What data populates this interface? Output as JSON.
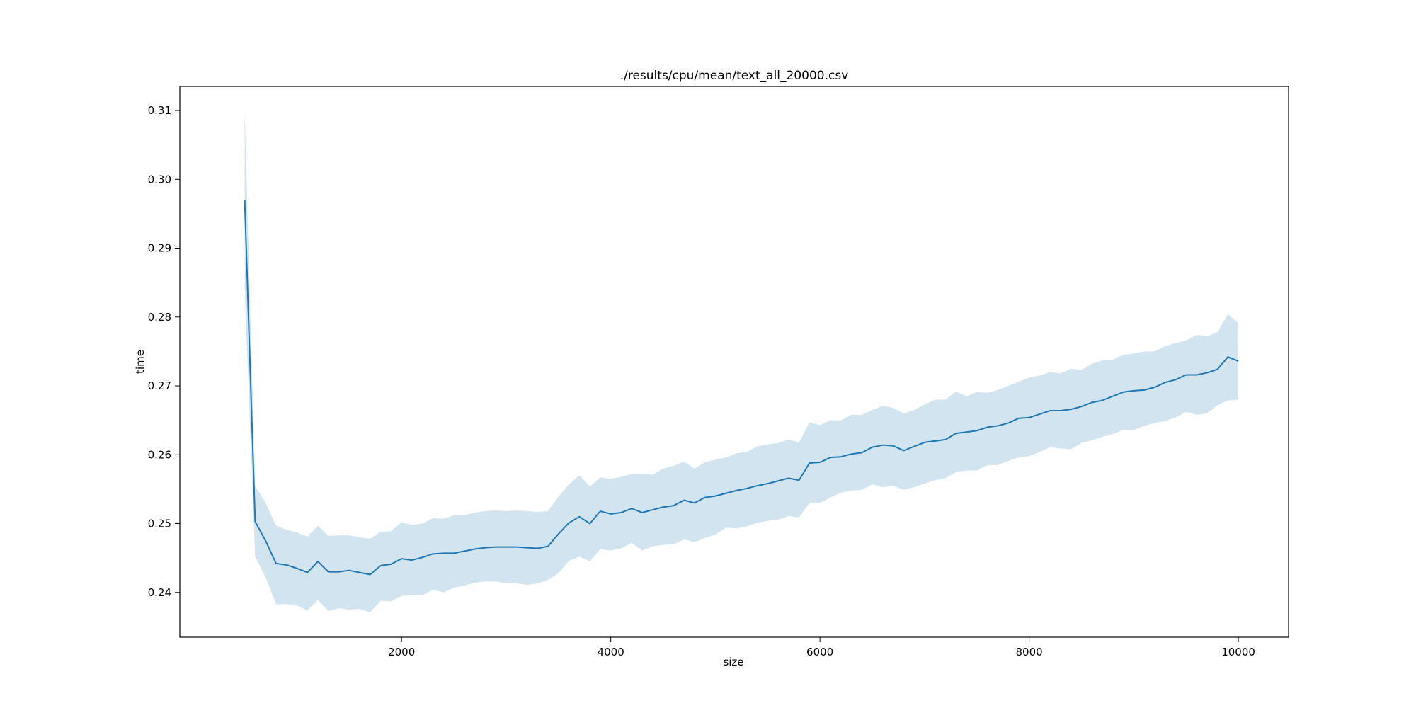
{
  "chart_data": {
    "type": "line",
    "title": "./results/cpu/mean/text_all_20000.csv",
    "xlabel": "size",
    "ylabel": "time",
    "xlim": [
      -120,
      10480
    ],
    "ylim": [
      0.2335,
      0.3135
    ],
    "xticks": [
      2000,
      4000,
      6000,
      8000,
      10000
    ],
    "xtick_labels": [
      "2000",
      "4000",
      "6000",
      "8000",
      "10000"
    ],
    "yticks": [
      0.24,
      0.25,
      0.26,
      0.27,
      0.28,
      0.29,
      0.3,
      0.31
    ],
    "ytick_labels": [
      "0.24",
      "0.25",
      "0.26",
      "0.27",
      "0.28",
      "0.29",
      "0.30",
      "0.31"
    ],
    "grid": false,
    "line_color": "#1f77b4",
    "band_color": "#1f77b4",
    "x": [
      500,
      600,
      700,
      800,
      900,
      1000,
      1100,
      1200,
      1300,
      1400,
      1500,
      1600,
      1700,
      1800,
      1900,
      2000,
      2100,
      2200,
      2300,
      2400,
      2500,
      2600,
      2700,
      2800,
      2900,
      3000,
      3100,
      3200,
      3300,
      3400,
      3500,
      3600,
      3700,
      3800,
      3900,
      4000,
      4100,
      4200,
      4300,
      4400,
      4500,
      4600,
      4700,
      4800,
      4900,
      5000,
      5100,
      5200,
      5300,
      5400,
      5500,
      5600,
      5700,
      5800,
      5900,
      6000,
      6100,
      6200,
      6300,
      6400,
      6500,
      6600,
      6700,
      6800,
      6900,
      7000,
      7100,
      7200,
      7300,
      7400,
      7500,
      7600,
      7700,
      7800,
      7900,
      8000,
      8100,
      8200,
      8300,
      8400,
      8500,
      8600,
      8700,
      8800,
      8900,
      9000,
      9100,
      9200,
      9300,
      9400,
      9500,
      9600,
      9700,
      9800,
      9900,
      10000
    ],
    "series": [
      {
        "values": [
          0.297,
          0.2503,
          0.2475,
          0.2442,
          0.244,
          0.2435,
          0.2429,
          0.2445,
          0.243,
          0.243,
          0.2432,
          0.2429,
          0.2426,
          0.2439,
          0.2441,
          0.2449,
          0.2447,
          0.2451,
          0.2456,
          0.2457,
          0.2457,
          0.246,
          0.2463,
          0.2465,
          0.2466,
          0.2466,
          0.2466,
          0.2465,
          0.2464,
          0.2467,
          0.2485,
          0.2501,
          0.251,
          0.25,
          0.2518,
          0.2514,
          0.2516,
          0.2522,
          0.2516,
          0.252,
          0.2524,
          0.2526,
          0.2534,
          0.253,
          0.2538,
          0.254,
          0.2544,
          0.2548,
          0.2551,
          0.2555,
          0.2558,
          0.2562,
          0.2566,
          0.2563,
          0.2588,
          0.2589,
          0.2596,
          0.2597,
          0.2601,
          0.2603,
          0.2611,
          0.2614,
          0.2613,
          0.2606,
          0.2612,
          0.2618,
          0.262,
          0.2622,
          0.2631,
          0.2633,
          0.2635,
          0.264,
          0.2642,
          0.2646,
          0.2653,
          0.2654,
          0.2659,
          0.2664,
          0.2664,
          0.2666,
          0.267,
          0.2676,
          0.2679,
          0.2685,
          0.2691,
          0.2693,
          0.2694,
          0.2698,
          0.2705,
          0.2709,
          0.2716,
          0.2716,
          0.2719,
          0.2724,
          0.2742,
          0.2736
        ],
        "lower": [
          0.284,
          0.2452,
          0.2422,
          0.2383,
          0.2383,
          0.2381,
          0.2374,
          0.2389,
          0.2373,
          0.2377,
          0.2375,
          0.2376,
          0.2371,
          0.2388,
          0.2387,
          0.2395,
          0.2396,
          0.2396,
          0.2404,
          0.24,
          0.2407,
          0.241,
          0.2414,
          0.2416,
          0.2416,
          0.2413,
          0.2413,
          0.2411,
          0.2413,
          0.2418,
          0.2428,
          0.2446,
          0.2452,
          0.2445,
          0.2463,
          0.2461,
          0.2464,
          0.2472,
          0.2461,
          0.2467,
          0.2469,
          0.247,
          0.2477,
          0.2473,
          0.2479,
          0.2484,
          0.2494,
          0.2493,
          0.2496,
          0.2501,
          0.2504,
          0.2506,
          0.2511,
          0.2509,
          0.253,
          0.253,
          0.2538,
          0.2545,
          0.2548,
          0.2549,
          0.2557,
          0.2553,
          0.2555,
          0.2549,
          0.2553,
          0.2558,
          0.2563,
          0.2566,
          0.2575,
          0.2577,
          0.2577,
          0.2585,
          0.2585,
          0.2591,
          0.2596,
          0.2598,
          0.2604,
          0.2611,
          0.2609,
          0.2608,
          0.2617,
          0.2621,
          0.2626,
          0.263,
          0.2636,
          0.2636,
          0.2642,
          0.2646,
          0.2649,
          0.2654,
          0.2662,
          0.2658,
          0.266,
          0.2672,
          0.2679,
          0.268
        ],
        "upper": [
          0.31,
          0.2555,
          0.253,
          0.2497,
          0.2491,
          0.2487,
          0.2481,
          0.2497,
          0.2482,
          0.2483,
          0.2483,
          0.248,
          0.2478,
          0.2488,
          0.2489,
          0.2502,
          0.2498,
          0.25,
          0.2508,
          0.2507,
          0.2512,
          0.2512,
          0.2516,
          0.2518,
          0.2519,
          0.2518,
          0.2519,
          0.2518,
          0.2517,
          0.2518,
          0.2539,
          0.2557,
          0.257,
          0.2554,
          0.2567,
          0.2565,
          0.2568,
          0.2572,
          0.2572,
          0.2571,
          0.258,
          0.2584,
          0.259,
          0.258,
          0.2589,
          0.2593,
          0.2596,
          0.2602,
          0.2604,
          0.2612,
          0.2615,
          0.2617,
          0.2622,
          0.2618,
          0.2647,
          0.2643,
          0.265,
          0.265,
          0.2658,
          0.2658,
          0.2665,
          0.2671,
          0.2668,
          0.266,
          0.2665,
          0.2673,
          0.268,
          0.268,
          0.2692,
          0.2685,
          0.2691,
          0.269,
          0.2694,
          0.27,
          0.2706,
          0.2712,
          0.2715,
          0.272,
          0.2718,
          0.2725,
          0.2723,
          0.2732,
          0.2737,
          0.2738,
          0.2745,
          0.2747,
          0.275,
          0.275,
          0.2758,
          0.2762,
          0.2766,
          0.2774,
          0.2772,
          0.2778,
          0.2804,
          0.2791
        ]
      }
    ]
  }
}
